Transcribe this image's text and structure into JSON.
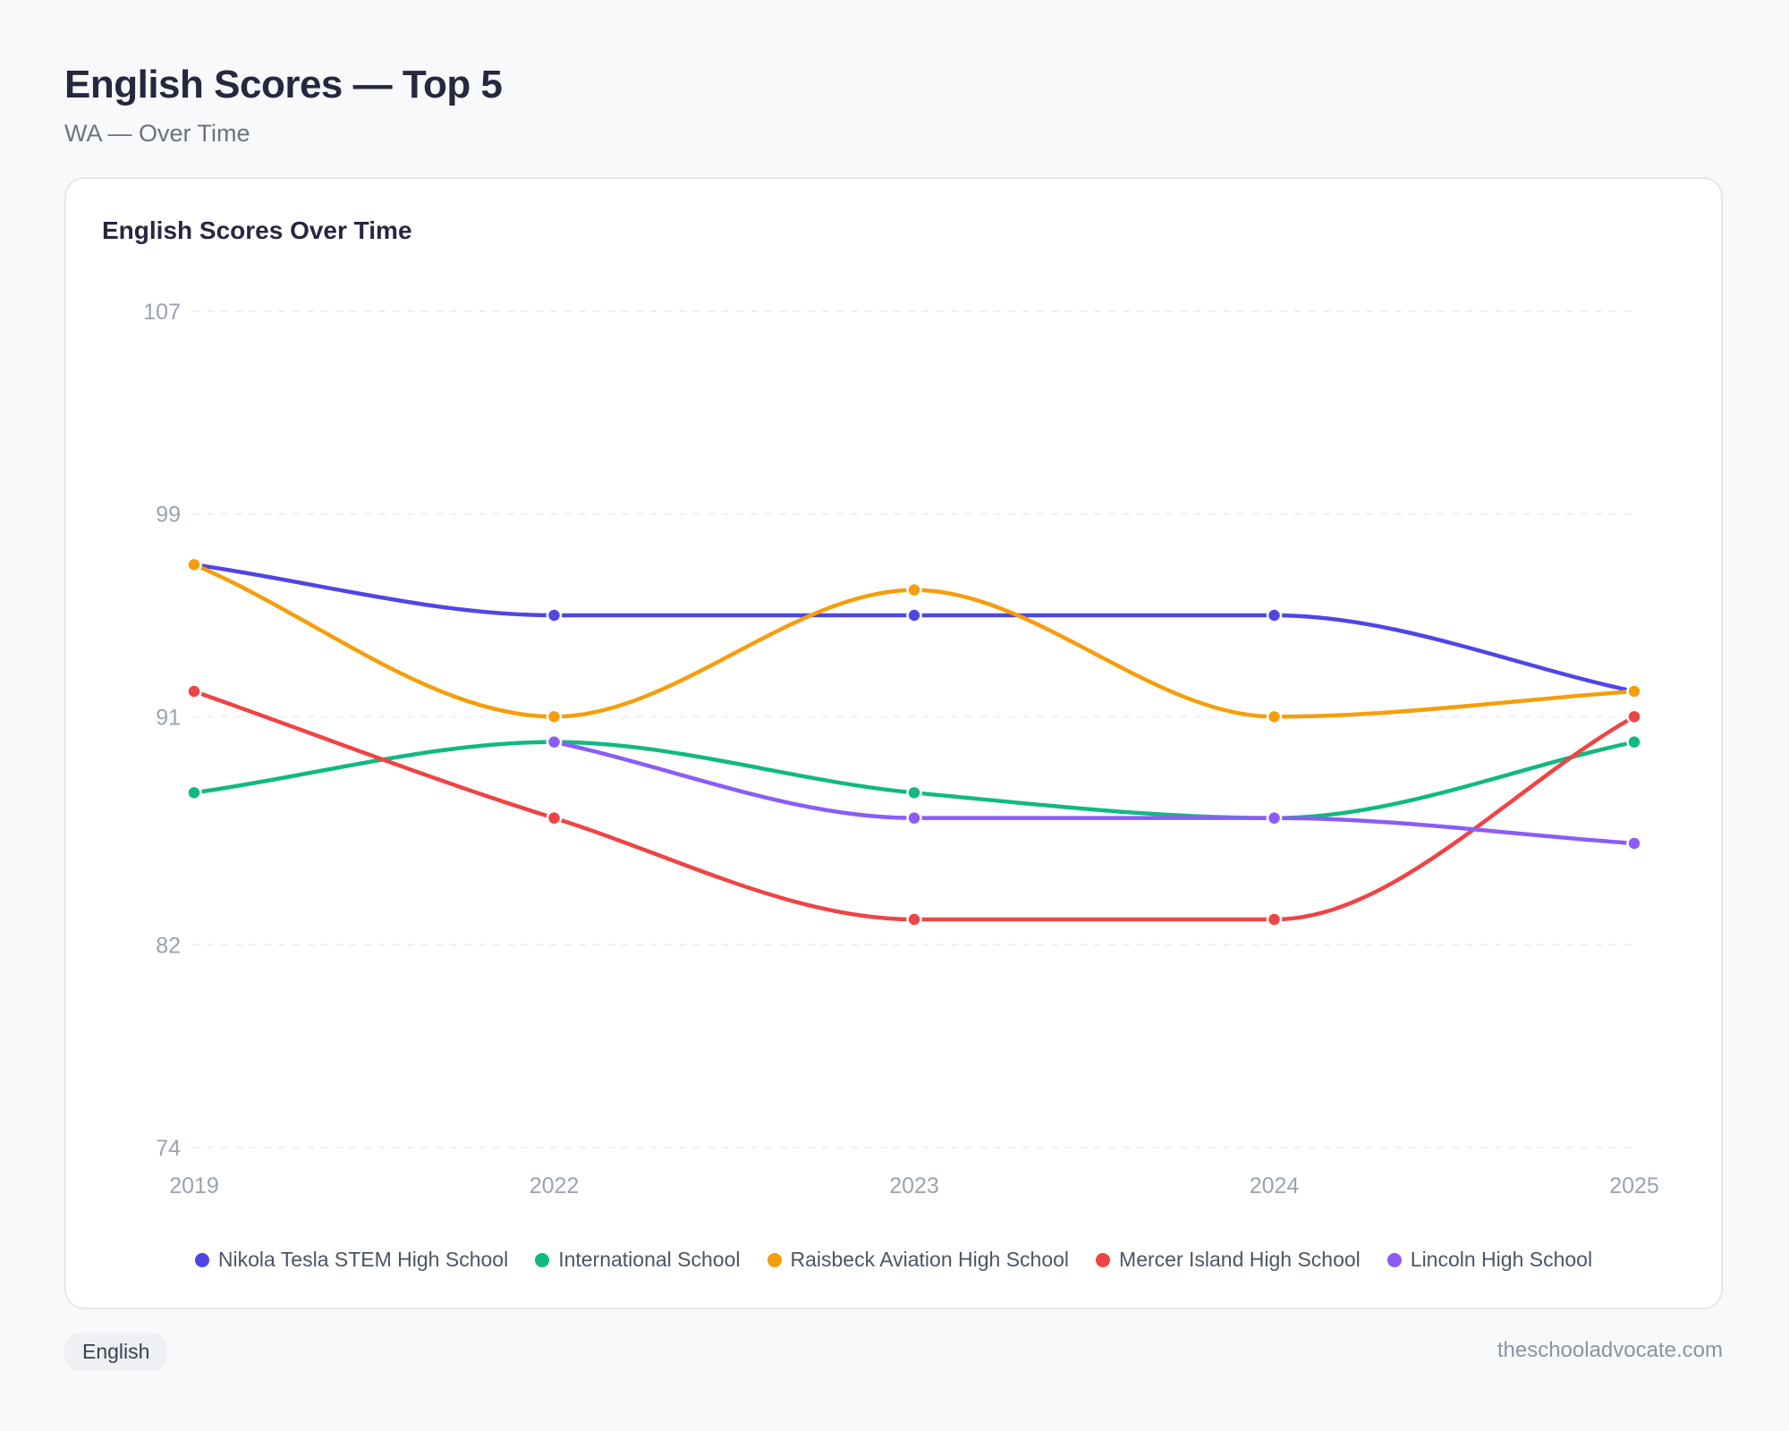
{
  "header": {
    "title": "English Scores — Top 5",
    "subtitle": "WA — Over Time"
  },
  "card": {
    "title": "English Scores Over Time"
  },
  "footer": {
    "tag": "English",
    "site": "theschooladvocate.com"
  },
  "chart_data": {
    "type": "line",
    "title": "English Scores Over Time",
    "x": [
      "2019",
      "2022",
      "2023",
      "2024",
      "2025"
    ],
    "ylim": [
      74,
      107
    ],
    "yticks": [
      74,
      82,
      91,
      99,
      107
    ],
    "grid": true,
    "legend_position": "bottom",
    "series": [
      {
        "name": "Nikola Tesla STEM High School",
        "color": "#4f46e5",
        "values": [
          97,
          95,
          95,
          95,
          92
        ]
      },
      {
        "name": "International School",
        "color": "#10b981",
        "values": [
          88,
          90,
          88,
          87,
          90
        ]
      },
      {
        "name": "Raisbeck Aviation High School",
        "color": "#f59e0b",
        "values": [
          97,
          91,
          96,
          91,
          92
        ]
      },
      {
        "name": "Mercer Island High School",
        "color": "#ef4444",
        "values": [
          92,
          87,
          83,
          83,
          91
        ]
      },
      {
        "name": "Lincoln High School",
        "color": "#8b5cf6",
        "values": [
          null,
          90,
          87,
          87,
          86
        ]
      }
    ]
  }
}
